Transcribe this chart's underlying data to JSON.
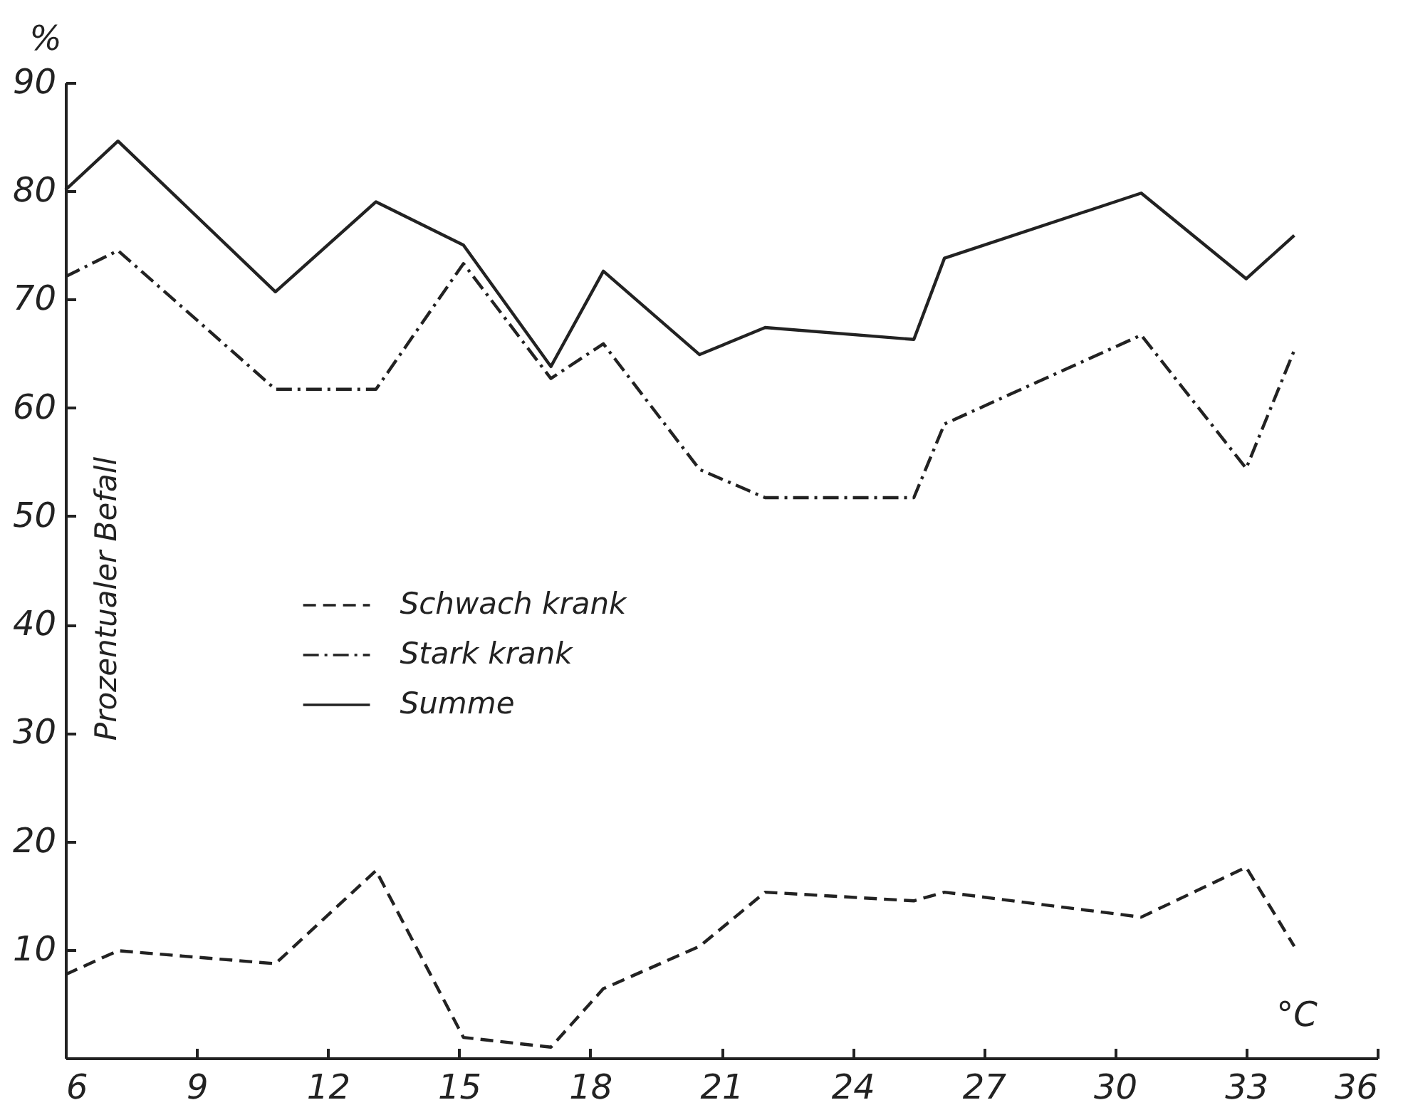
{
  "chart_data": {
    "type": "line",
    "xlabel": "°C",
    "ylabel": "Prozentualer Befall",
    "annotations": [
      "%"
    ],
    "x": [
      6,
      7.2,
      10.8,
      13.1,
      15.1,
      17.1,
      18.3,
      20.5,
      22.0,
      25.4,
      26.1,
      30.6,
      33.0,
      34.1
    ],
    "series": [
      {
        "name": "Schwach krank",
        "color": "#222222",
        "line_style": "dashed",
        "values": [
          7.7,
          9.9,
          8.7,
          17.3,
          1.9,
          1.0,
          6.4,
          10.3,
          15.3,
          14.5,
          15.3,
          13.0,
          17.6,
          10.3
        ]
      },
      {
        "name": "Stark krank",
        "color": "#222222",
        "line_style": "dashdot",
        "values": [
          72.1,
          74.5,
          61.7,
          61.7,
          73.3,
          62.7,
          65.9,
          54.3,
          51.7,
          51.7,
          58.5,
          66.7,
          54.4,
          65.3
        ]
      },
      {
        "name": "Summe",
        "color": "#222222",
        "line_style": "solid",
        "values": [
          80.1,
          84.6,
          70.7,
          79.0,
          75.0,
          63.8,
          72.6,
          64.9,
          67.4,
          66.3,
          73.8,
          79.8,
          71.9,
          75.9
        ]
      }
    ],
    "xlim": [
      6,
      36
    ],
    "xticks": [
      6,
      9,
      12,
      15,
      18,
      21,
      24,
      27,
      30,
      33,
      36
    ],
    "ylim": [
      0,
      90
    ],
    "yticks": [
      10,
      20,
      30,
      40,
      50,
      60,
      70,
      80,
      90
    ],
    "grid": false,
    "legend": "left"
  }
}
